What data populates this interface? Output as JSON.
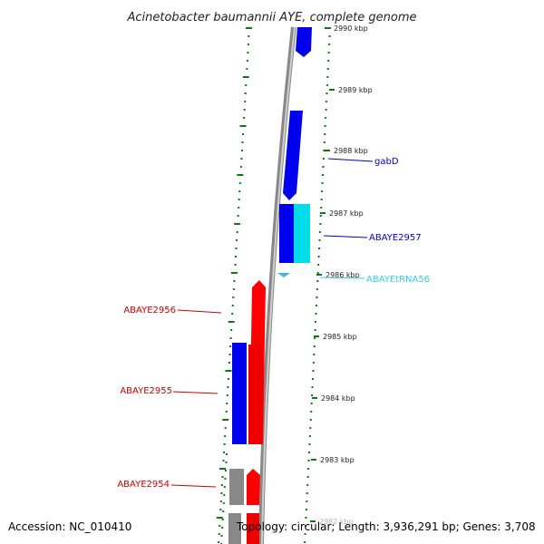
{
  "title": "Acinetobacter baumannii AYE, complete genome",
  "footer": {
    "accession": "Accession: NC_010410",
    "summary": "Topology: circular; Length: 3,936,291 bp; Genes: 3,708"
  },
  "ticks": [
    "2990 kbp",
    "2989 kbp",
    "2988 kbp",
    "2987 kbp",
    "2986 kbp",
    "2985 kbp",
    "2984 kbp",
    "2983 kbp",
    "2982 kbp"
  ],
  "genes": [
    {
      "label": "gabD",
      "strand": "+",
      "color": "#0000cc"
    },
    {
      "label": "ABAYE2957",
      "strand": "+",
      "color": "#0000cc"
    },
    {
      "label": "ABAYEtRNA56",
      "strand": "tRNA",
      "color": "#33ccee"
    },
    {
      "label": "ABAYE2956",
      "strand": "-",
      "color": "#cc0000"
    },
    {
      "label": "ABAYE2955",
      "strand": "-",
      "color": "#cc0000"
    },
    {
      "label": "ABAYE2954",
      "strand": "-",
      "color": "#cc0000"
    }
  ],
  "colors": {
    "forward_cds": "#0000ee",
    "reverse_cds": "#ff0000",
    "trna": "#00e5f0",
    "backbone": "#888888",
    "gc_ticks": "#117711"
  }
}
